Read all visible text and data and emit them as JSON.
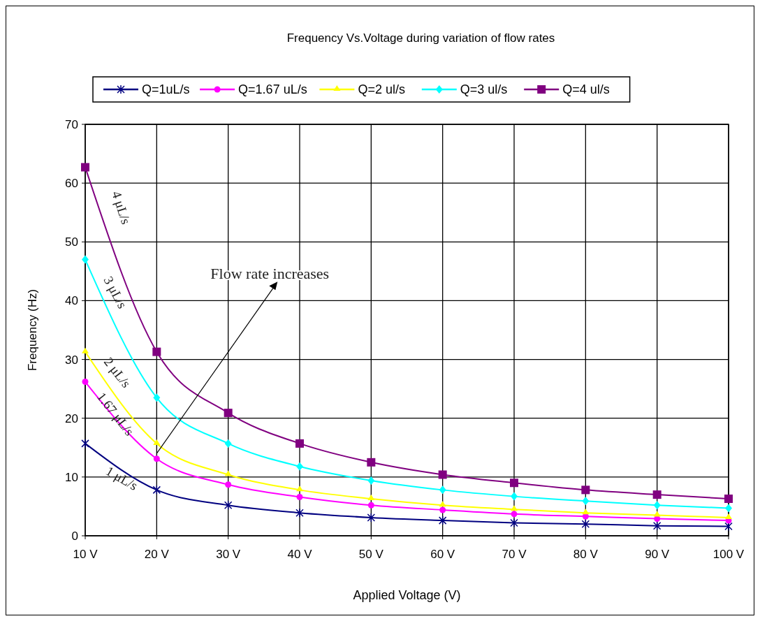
{
  "chart_data": {
    "type": "line",
    "title": "Frequency Vs.Voltage during variation of flow rates",
    "xlabel": "Applied Voltage (V)",
    "ylabel": "Frequency (Hz)",
    "categories": [
      "10 V",
      "20 V",
      "30 V",
      "40 V",
      "50 V",
      "60 V",
      "70 V",
      "80 V",
      "90 V",
      "100 V"
    ],
    "series": [
      {
        "name": "Q=1uL/s",
        "color": "#000080",
        "marker": "cross",
        "values": [
          15.7,
          7.8,
          5.2,
          3.9,
          3.1,
          2.6,
          2.2,
          2.0,
          1.7,
          1.6
        ]
      },
      {
        "name": "Q=1.67 uL/s",
        "color": "#ff00ff",
        "marker": "circle",
        "values": [
          26.2,
          13.1,
          8.7,
          6.6,
          5.2,
          4.4,
          3.7,
          3.3,
          2.9,
          2.6
        ]
      },
      {
        "name": "Q=2 ul/s",
        "color": "#ffff00",
        "marker": "triangle",
        "values": [
          31.3,
          15.7,
          10.4,
          7.8,
          6.3,
          5.2,
          4.5,
          3.9,
          3.5,
          3.1
        ]
      },
      {
        "name": "Q=3 ul/s",
        "color": "#00ffff",
        "marker": "diamond",
        "values": [
          47,
          23.5,
          15.7,
          11.8,
          9.4,
          7.8,
          6.7,
          5.9,
          5.2,
          4.7
        ]
      },
      {
        "name": "Q=4 ul/s",
        "color": "#800080",
        "marker": "square",
        "values": [
          62.7,
          31.3,
          20.9,
          15.7,
          12.5,
          10.4,
          9.0,
          7.8,
          7.0,
          6.3
        ]
      }
    ],
    "ylim": [
      0,
      70
    ],
    "yticks": [
      0,
      10,
      20,
      30,
      40,
      50,
      60,
      70
    ],
    "grid": true,
    "legend": "top",
    "annotations": [
      "4 μL/s",
      "3 μL/s",
      "2 μL/s",
      "1.67 μL/s",
      "1 μL/s",
      {
        "text": "Flow rate increases",
        "x": "20 V",
        "y": 14
      }
    ]
  }
}
